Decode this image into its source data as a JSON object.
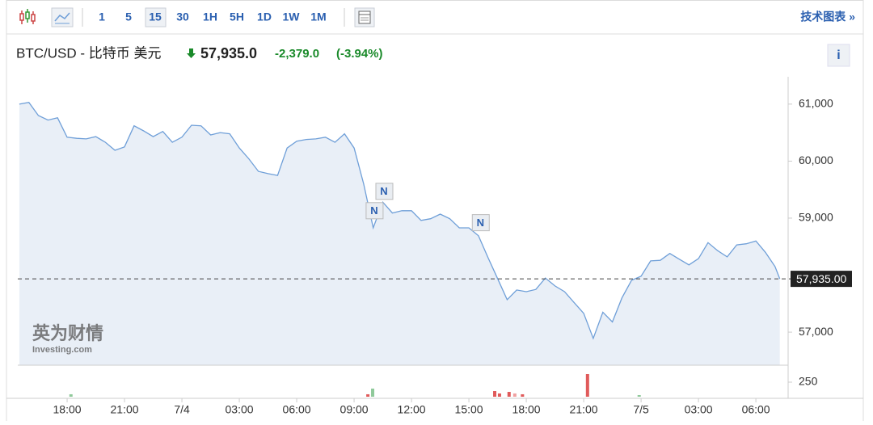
{
  "toolbar": {
    "intervals": [
      "1",
      "5",
      "15",
      "30",
      "1H",
      "5H",
      "1D",
      "1W",
      "1M"
    ],
    "link": "技术图表 »"
  },
  "header": {
    "symbol": "BTC/USD - 比特币 美元",
    "price": "57,935.0",
    "change": "-2,379.0",
    "change_pct": "(-3.94%)"
  },
  "watermark": {
    "brand": "英为财情",
    "site": "Investing.com"
  },
  "chart_data": {
    "type": "area",
    "color": "#6f9fd8",
    "fill": "#e9eff7",
    "x": [
      15.5,
      16,
      16.5,
      17,
      17.5,
      18,
      18.5,
      19,
      19.5,
      20,
      20.5,
      21,
      21.5,
      22,
      22.5,
      23,
      23.5,
      24,
      24.5,
      25,
      25.5,
      26,
      26.5,
      27,
      27.5,
      28,
      28.5,
      29,
      29.5,
      30,
      30.5,
      31,
      31.5,
      32,
      32.5,
      33,
      33.5,
      34,
      34.5,
      35,
      35.5,
      36,
      36.5,
      37,
      37.5,
      38,
      38.5,
      39,
      39.5,
      40,
      40.5,
      41,
      41.5,
      42,
      42.5,
      43,
      43.5,
      44,
      44.5,
      45,
      45.5,
      46,
      46.5,
      47,
      47.5,
      48,
      48.5,
      49,
      49.5,
      50,
      50.5,
      51,
      51.5,
      52,
      52.5,
      53,
      53.5,
      54,
      54.5,
      55,
      55.25
    ],
    "values": [
      61000,
      61030,
      60800,
      60720,
      60760,
      60420,
      60400,
      60390,
      60430,
      60330,
      60190,
      60250,
      60620,
      60530,
      60430,
      60520,
      60330,
      60420,
      60630,
      60620,
      60460,
      60500,
      60480,
      60230,
      60040,
      59820,
      59780,
      59750,
      60230,
      60350,
      60380,
      60390,
      60420,
      60330,
      60480,
      60230,
      59600,
      58830,
      59280,
      59090,
      59130,
      59130,
      58960,
      58990,
      59070,
      58990,
      58830,
      58830,
      58690,
      58310,
      57940,
      57570,
      57740,
      57710,
      57750,
      57950,
      57810,
      57710,
      57520,
      57330,
      56890,
      57350,
      57180,
      57600,
      57910,
      57980,
      58250,
      58260,
      58380,
      58280,
      58180,
      58290,
      58570,
      58430,
      58320,
      58530,
      58550,
      58600,
      58400,
      58150,
      57935
    ],
    "xlim": [
      15.4,
      55.8
    ],
    "ylim": [
      56420,
      61480
    ],
    "xticks": [
      {
        "value": 18,
        "label": "18:00"
      },
      {
        "value": 21,
        "label": "21:00"
      },
      {
        "value": 24,
        "label": "7/4"
      },
      {
        "value": 27,
        "label": "03:00"
      },
      {
        "value": 30,
        "label": "06:00"
      },
      {
        "value": 33,
        "label": "09:00"
      },
      {
        "value": 36,
        "label": "12:00"
      },
      {
        "value": 39,
        "label": "15:00"
      },
      {
        "value": 42,
        "label": "18:00"
      },
      {
        "value": 45,
        "label": "21:00"
      },
      {
        "value": 48,
        "label": "7/5"
      },
      {
        "value": 51,
        "label": "03:00"
      },
      {
        "value": 54,
        "label": "06:00"
      }
    ],
    "yticks": [
      {
        "value": 57000,
        "label": "57,000"
      },
      {
        "value": 59000,
        "label": "59,000"
      },
      {
        "value": 60000,
        "label": "60,000"
      },
      {
        "value": 61000,
        "label": "61,000"
      }
    ],
    "last_price": {
      "value": 57935,
      "label": "57,935.00"
    },
    "annotations": [
      {
        "label": "N",
        "x": 34.56,
        "y": 59470
      },
      {
        "label": "N",
        "x": 34.05,
        "y": 59130
      },
      {
        "label": "N",
        "x": 39.6,
        "y": 58920
      }
    ],
    "volume": {
      "x": [
        18.2,
        33.72,
        33.97,
        40.35,
        40.6,
        41.1,
        41.4,
        41.8,
        45.2,
        47.9
      ],
      "values": [
        42,
        42,
        140,
        97,
        56,
        83,
        56,
        42,
        389,
        28
      ],
      "colors": [
        "#8fc99a",
        "#e05a5a",
        "#8fc99a",
        "#e05a5a",
        "#e05a5a",
        "#e05a5a",
        "#f0a0a0",
        "#e05a5a",
        "#e05a5a",
        "#8fc99a"
      ],
      "ylim": [
        0,
        528
      ],
      "yticks": [
        250
      ]
    }
  }
}
